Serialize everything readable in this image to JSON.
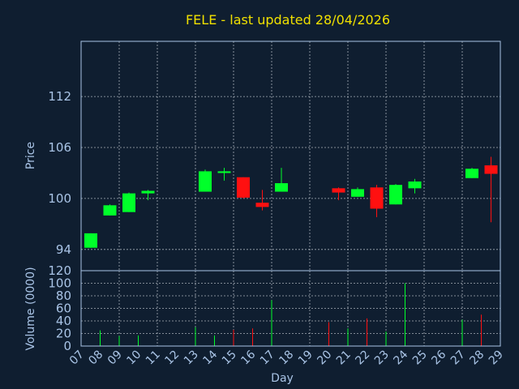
{
  "chart_data": {
    "title": "FELE - last updated 28/04/2026",
    "xlabel": "Day",
    "colors": {
      "background": "#0f1e30",
      "up": "#00ff2a",
      "down": "#ff1010",
      "axis_text": "#a9c4e6",
      "title": "#f0e000"
    },
    "x_ticks": [
      "07",
      "08",
      "09",
      "10",
      "11",
      "12",
      "13",
      "14",
      "15",
      "16",
      "17",
      "18",
      "19",
      "20",
      "21",
      "22",
      "23",
      "24",
      "25",
      "26",
      "27",
      "28",
      "29"
    ],
    "price_panel": {
      "type": "candlestick",
      "ylabel": "Price",
      "ylim": [
        91.5,
        118.5
      ],
      "yticks": [
        94,
        100,
        106,
        112
      ],
      "grid": true,
      "candles": [
        {
          "day": "07",
          "open": 94.2,
          "high": 95.9,
          "low": 94.2,
          "close": 95.9
        },
        {
          "day": "08",
          "open": 98.0,
          "high": 99.3,
          "low": 98.0,
          "close": 99.2
        },
        {
          "day": "09",
          "open": 98.4,
          "high": 100.7,
          "low": 98.4,
          "close": 100.6
        },
        {
          "day": "10",
          "open": 100.6,
          "high": 101.0,
          "low": 99.8,
          "close": 100.9
        },
        {
          "day": "13",
          "open": 100.8,
          "high": 103.4,
          "low": 100.8,
          "close": 103.2
        },
        {
          "day": "14",
          "open": 103.0,
          "high": 103.6,
          "low": 102.1,
          "close": 103.2
        },
        {
          "day": "15",
          "open": 102.5,
          "high": 102.5,
          "low": 100.0,
          "close": 100.1
        },
        {
          "day": "16",
          "open": 99.5,
          "high": 101.0,
          "low": 98.6,
          "close": 99.0
        },
        {
          "day": "17",
          "open": 100.8,
          "high": 103.6,
          "low": 100.8,
          "close": 101.8
        },
        {
          "day": "20",
          "open": 101.2,
          "high": 101.3,
          "low": 99.8,
          "close": 100.7
        },
        {
          "day": "21",
          "open": 100.2,
          "high": 101.3,
          "low": 100.2,
          "close": 101.1
        },
        {
          "day": "22",
          "open": 101.3,
          "high": 101.6,
          "low": 97.8,
          "close": 98.8
        },
        {
          "day": "23",
          "open": 99.3,
          "high": 101.7,
          "low": 99.3,
          "close": 101.6
        },
        {
          "day": "24",
          "open": 101.2,
          "high": 102.3,
          "low": 100.6,
          "close": 102.0
        },
        {
          "day": "27",
          "open": 102.4,
          "high": 103.6,
          "low": 102.4,
          "close": 103.5
        },
        {
          "day": "28",
          "open": 103.9,
          "high": 104.9,
          "low": 97.2,
          "close": 102.9
        }
      ]
    },
    "volume_panel": {
      "type": "bar",
      "ylabel": "Volume (0000)",
      "ylim": [
        0,
        120
      ],
      "yticks": [
        0,
        20,
        40,
        60,
        80,
        100,
        120
      ],
      "grid": true,
      "bars": [
        {
          "day": "08",
          "value": 25,
          "direction": "up"
        },
        {
          "day": "09",
          "value": 16,
          "direction": "up"
        },
        {
          "day": "10",
          "value": 17,
          "direction": "up"
        },
        {
          "day": "13",
          "value": 30,
          "direction": "up"
        },
        {
          "day": "14",
          "value": 17,
          "direction": "up"
        },
        {
          "day": "15",
          "value": 26,
          "direction": "down"
        },
        {
          "day": "16",
          "value": 28,
          "direction": "down"
        },
        {
          "day": "17",
          "value": 73,
          "direction": "up"
        },
        {
          "day": "20",
          "value": 38,
          "direction": "down"
        },
        {
          "day": "21",
          "value": 28,
          "direction": "up"
        },
        {
          "day": "22",
          "value": 44,
          "direction": "down"
        },
        {
          "day": "23",
          "value": 23,
          "direction": "up"
        },
        {
          "day": "24",
          "value": 100,
          "direction": "up"
        },
        {
          "day": "27",
          "value": 42,
          "direction": "up"
        },
        {
          "day": "28",
          "value": 50,
          "direction": "down"
        }
      ]
    }
  }
}
